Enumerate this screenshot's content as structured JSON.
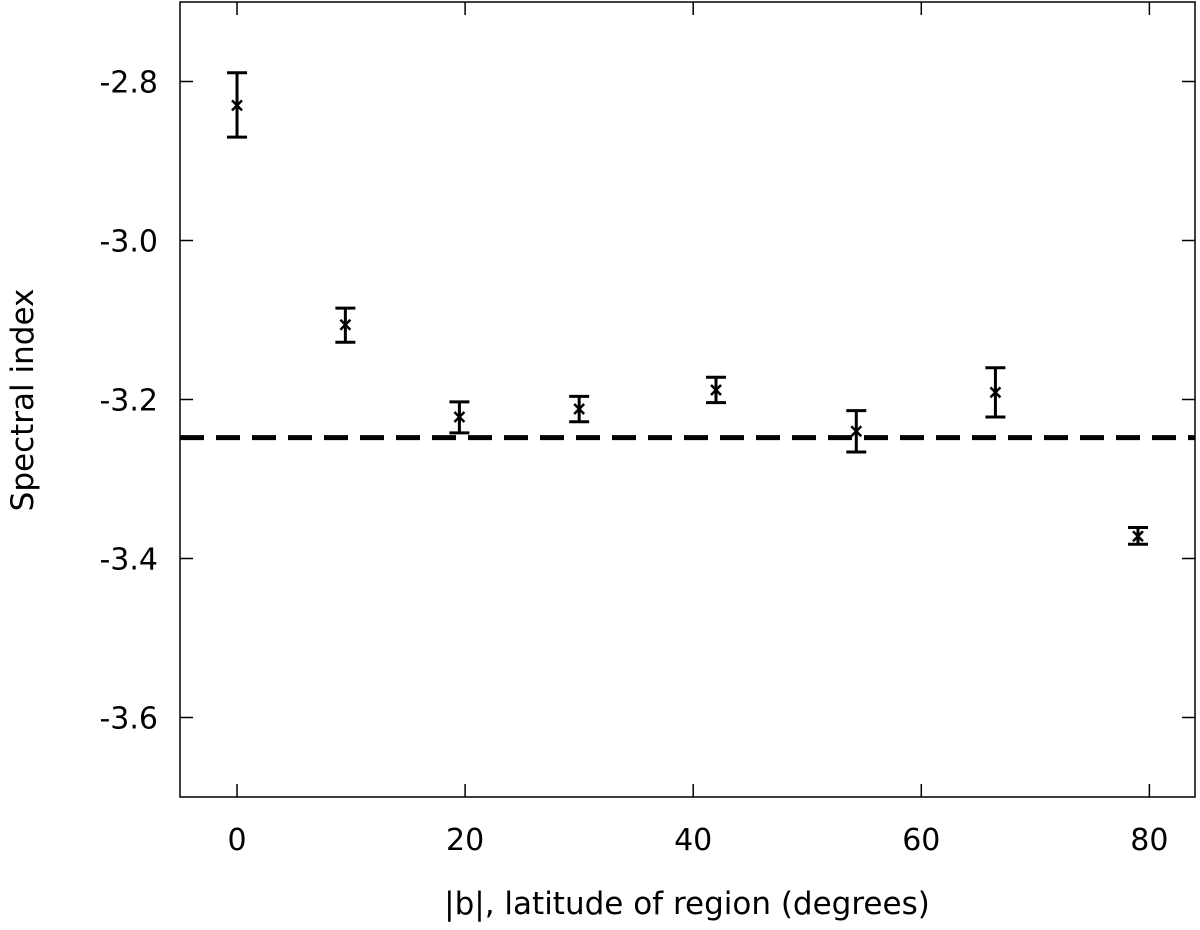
{
  "chart_data": {
    "type": "scatter",
    "title": "",
    "xlabel": "|b|, latitude of region (degrees)",
    "ylabel": "Spectral index",
    "xlim": [
      -5,
      84
    ],
    "ylim": [
      -3.7,
      -2.7
    ],
    "x_ticks": [
      0,
      20,
      40,
      60,
      80
    ],
    "x_tick_labels": [
      "0",
      "20",
      "40",
      "60",
      "80"
    ],
    "y_ticks": [
      -2.8,
      -3.0,
      -3.2,
      -3.4,
      -3.6
    ],
    "y_tick_labels": [
      "-2.8",
      "-3.0",
      "-3.2",
      "-3.4",
      "-3.6"
    ],
    "grid": false,
    "legend": "none",
    "marker": "x",
    "series": [
      {
        "x": [
          0,
          9.5,
          19.5,
          30,
          42,
          54.3,
          66.5,
          79
        ],
        "y": [
          -2.83,
          -3.106,
          -3.222,
          -3.212,
          -3.188,
          -3.24,
          -3.191,
          -3.372
        ],
        "yerr_low": [
          -2.87,
          -3.128,
          -3.242,
          -3.228,
          -3.204,
          -3.266,
          -3.222,
          -3.382
        ],
        "yerr_high": [
          -2.789,
          -3.085,
          -3.203,
          -3.196,
          -3.172,
          -3.214,
          -3.16,
          -3.361
        ]
      }
    ],
    "reference_line": {
      "y": -3.248,
      "style": "dashed"
    }
  }
}
